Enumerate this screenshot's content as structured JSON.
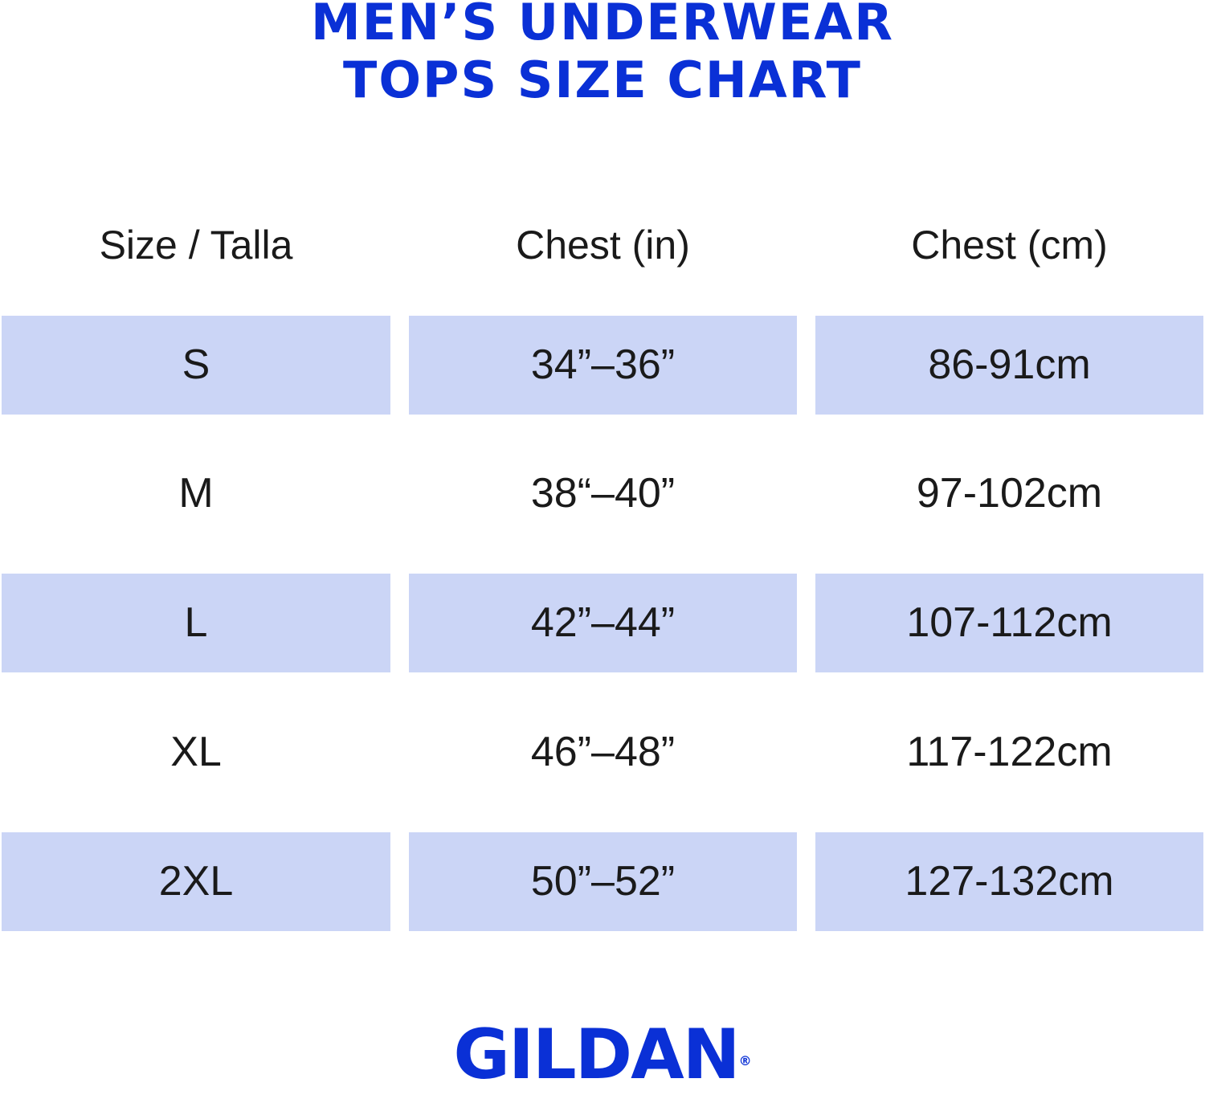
{
  "title": {
    "line1": "MEN’S UNDERWEAR",
    "line2": "TOPS SIZE CHART"
  },
  "colors": {
    "brand_blue": "#0a30d6",
    "row_highlight": "#cbd5f6",
    "text": "#1a1a1a"
  },
  "table": {
    "headers": [
      "Size / Talla",
      "Chest (in)",
      "Chest (cm)"
    ],
    "rows": [
      {
        "size": "S",
        "chest_in": "34”–36”",
        "chest_cm": "86-91cm",
        "highlighted": true
      },
      {
        "size": "M",
        "chest_in": "38“–40”",
        "chest_cm": "97-102cm",
        "highlighted": false
      },
      {
        "size": "L",
        "chest_in": "42”–44”",
        "chest_cm": "107-112cm",
        "highlighted": true
      },
      {
        "size": "XL",
        "chest_in": "46”–48”",
        "chest_cm": "117-122cm",
        "highlighted": false
      },
      {
        "size": "2XL",
        "chest_in": "50”–52”",
        "chest_cm": "127-132cm",
        "highlighted": true
      }
    ]
  },
  "logo": {
    "text": "GILDAN",
    "mark": "®"
  }
}
